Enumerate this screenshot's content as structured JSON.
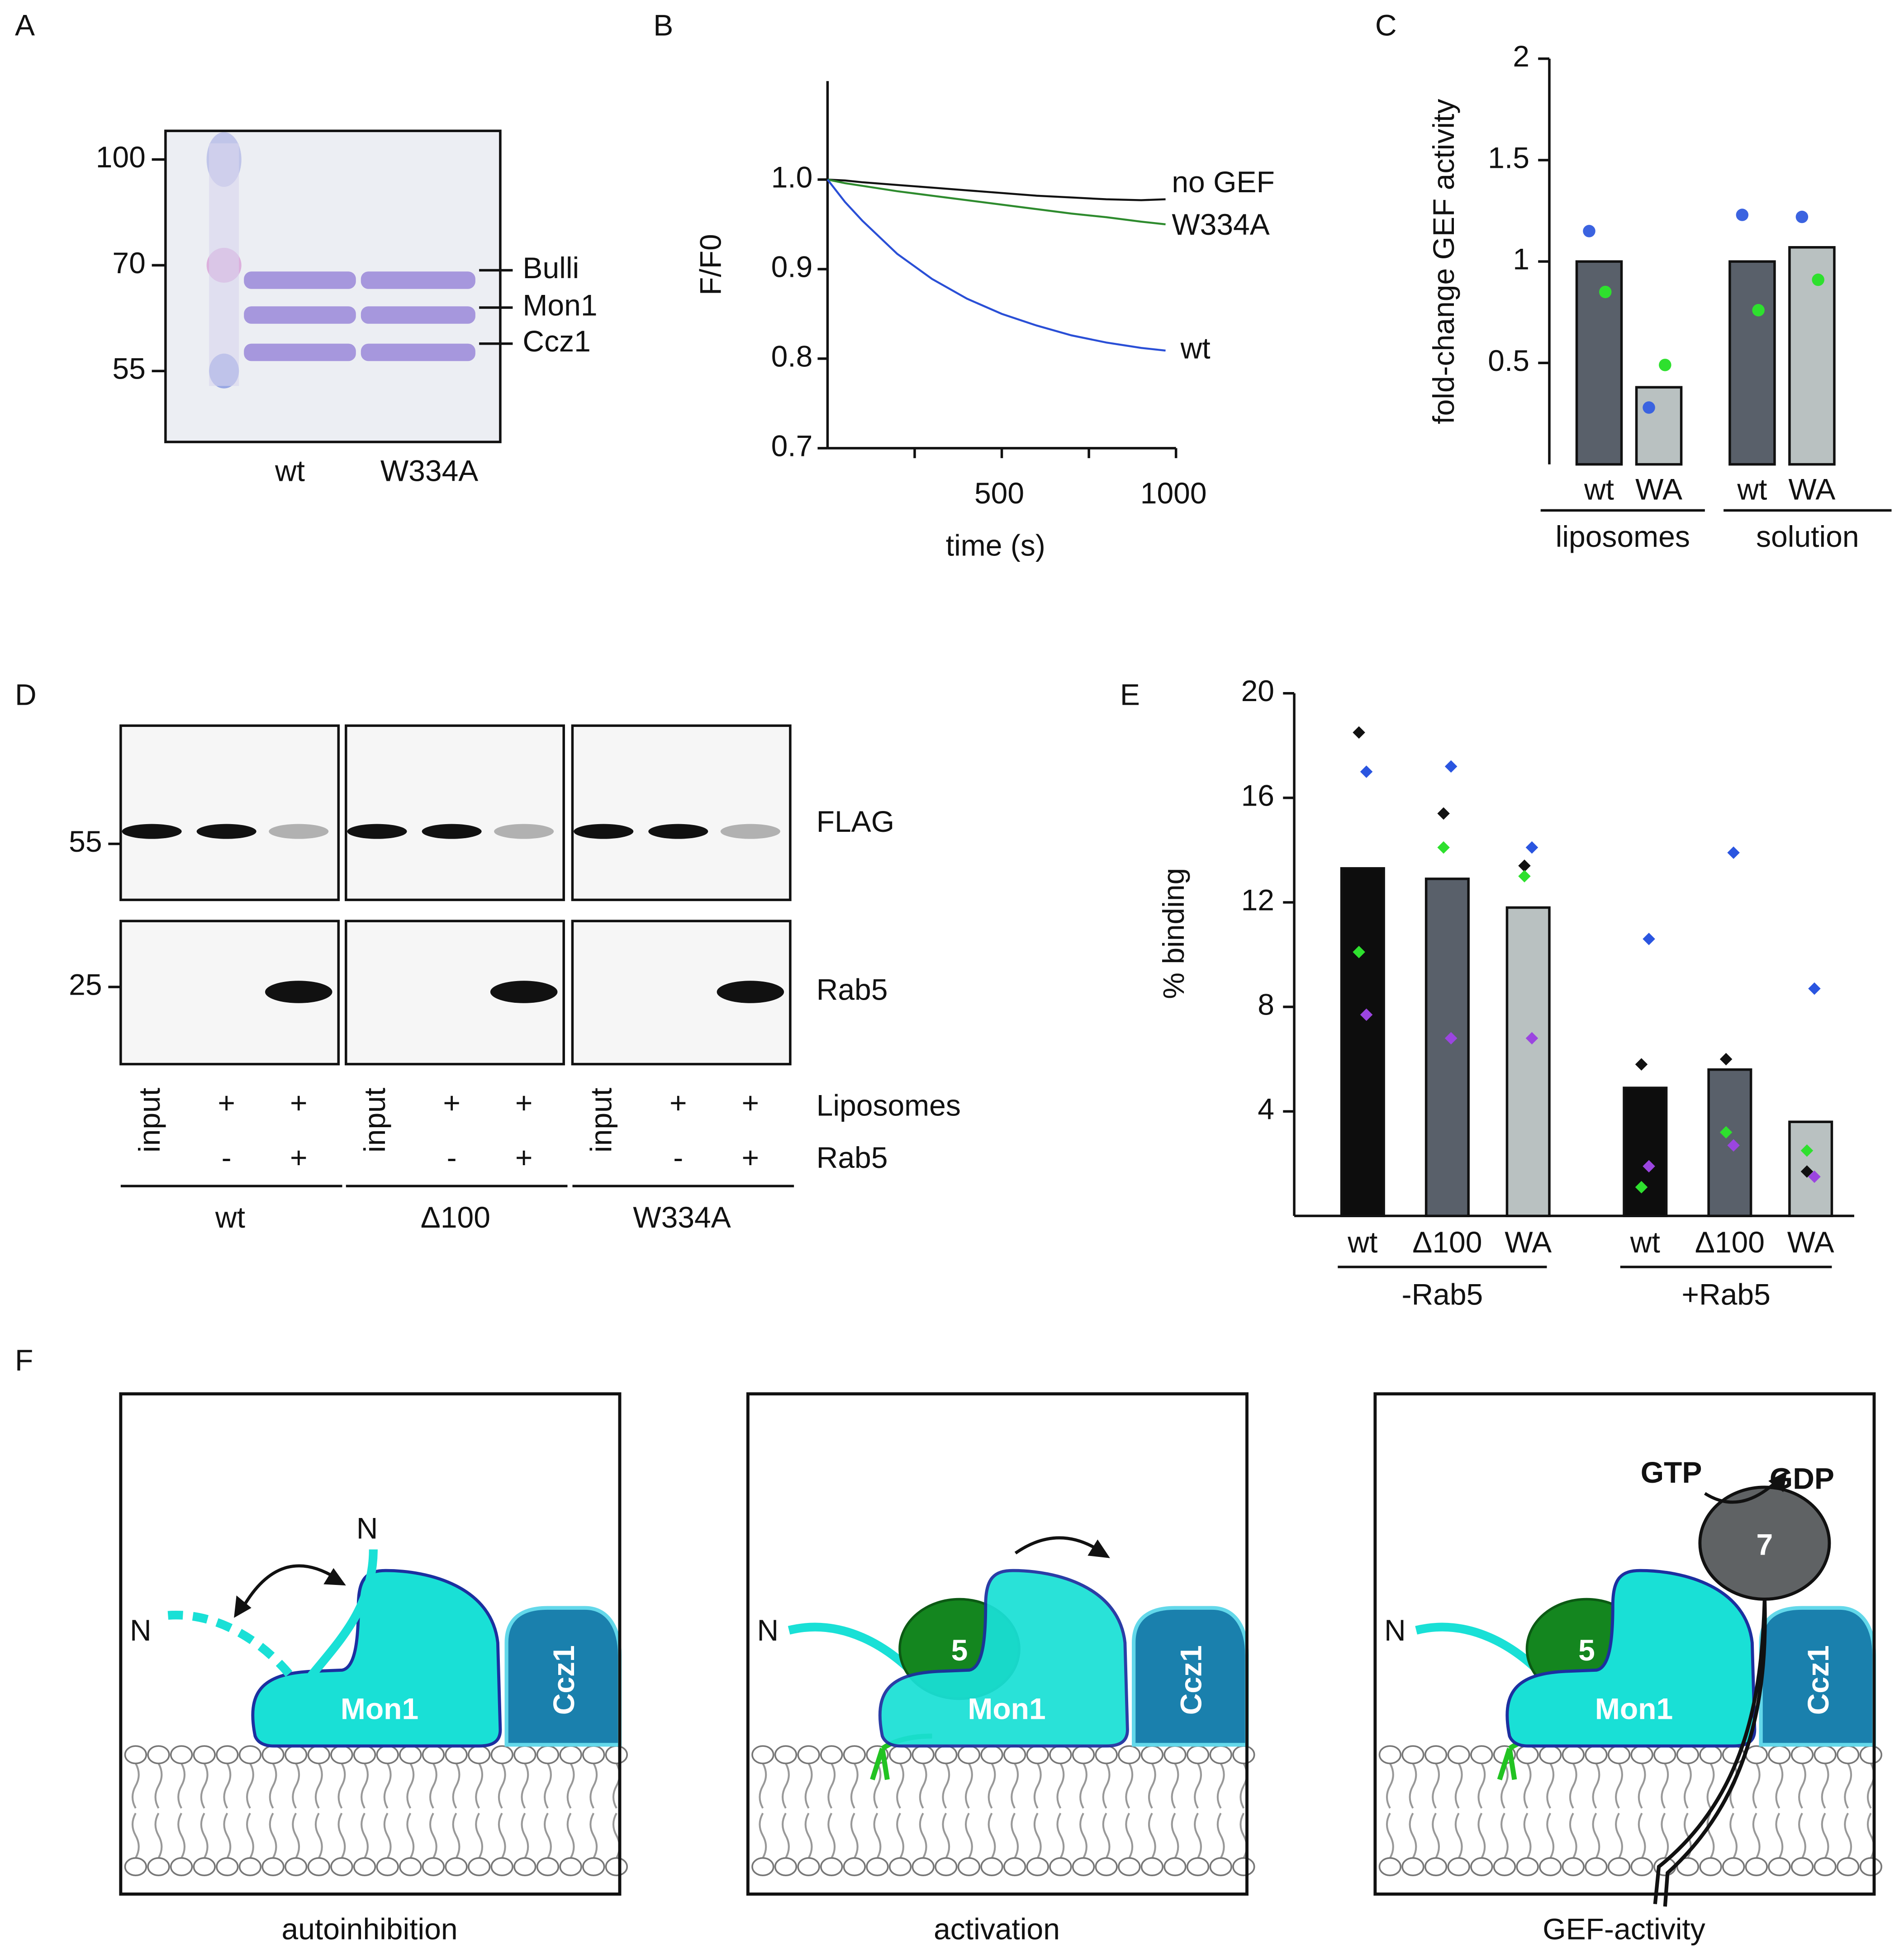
{
  "panel_labels": [
    "A",
    "B",
    "C",
    "D",
    "E",
    "F"
  ],
  "gel": {
    "mw_markers": [
      100,
      70,
      55
    ],
    "band_labels": [
      "Bulli",
      "Mon1",
      "Ccz1"
    ],
    "lane_labels": [
      "wt",
      "W334A"
    ]
  },
  "chart_data": [
    {
      "type": "line",
      "xlabel": "time (s)",
      "ylabel": "F/F0",
      "x": [
        0,
        50,
        100,
        200,
        300,
        400,
        500,
        600,
        700,
        800,
        900,
        970
      ],
      "xlim": [
        0,
        1000
      ],
      "xticks": [
        500,
        1000
      ],
      "x_minor_ticks": [
        250,
        750
      ],
      "ylim": [
        0.7,
        1.11
      ],
      "yticks": [
        0.7,
        0.8,
        0.9,
        {
          "value": 1,
          "label": "1.0"
        }
      ],
      "series": [
        {
          "name": "no GEF",
          "color": "#111111",
          "values": [
            1.0,
            0.999,
            0.997,
            0.994,
            0.991,
            0.988,
            0.985,
            0.982,
            0.98,
            0.978,
            0.977,
            0.978
          ]
        },
        {
          "name": "W334A",
          "color": "#2e8b2e",
          "values": [
            1.0,
            0.996,
            0.993,
            0.987,
            0.982,
            0.977,
            0.972,
            0.967,
            0.962,
            0.958,
            0.953,
            0.95
          ]
        },
        {
          "name": "wt",
          "color": "#2a4fd6",
          "values": [
            1.0,
            0.975,
            0.954,
            0.917,
            0.889,
            0.867,
            0.85,
            0.837,
            0.826,
            0.818,
            0.812,
            0.809
          ]
        }
      ]
    },
    {
      "type": "bar",
      "marker": "circle",
      "ylabel": "fold-change GEF activity",
      "categories": [
        "wt",
        "WA",
        "wt",
        "WA"
      ],
      "groups": [
        "liposomes",
        "solution"
      ],
      "values": [
        1,
        0.38,
        1,
        1.07
      ],
      "colors": [
        "#59606a",
        "#b9c1c1",
        "#59606a",
        "#b9c1c1"
      ],
      "replicates": [
        {
          "color": "#3b63e0",
          "values": [
            1.15,
            0.28,
            1.23,
            1.22
          ]
        },
        {
          "color": "#2ee02e",
          "values": [
            0.85,
            0.49,
            0.76,
            0.91
          ]
        }
      ],
      "ylim": [
        0,
        2
      ],
      "yticks": [
        0.5,
        1,
        1.5,
        2
      ]
    },
    {
      "type": "bar",
      "marker": "diamond",
      "ylabel": "% binding",
      "x_axis": true,
      "categories": [
        "wt",
        "Δ100",
        "WA",
        "wt",
        "Δ100",
        "WA"
      ],
      "groups": [
        "-Rab5",
        "+Rab5"
      ],
      "values": [
        13.3,
        12.9,
        11.8,
        4.9,
        5.6,
        3.6
      ],
      "colors": [
        "#0d0d0d",
        "#59606a",
        "#b9c1c1",
        "#0d0d0d",
        "#59606a",
        "#b9c1c1"
      ],
      "replicates": [
        {
          "color": "#111111",
          "values": [
            18.5,
            15.4,
            13.4,
            5.8,
            6.0,
            1.7
          ]
        },
        {
          "color": "#2a55e0",
          "values": [
            17.0,
            17.2,
            14.1,
            10.6,
            13.9,
            8.7
          ]
        },
        {
          "color": "#2ee02e",
          "values": [
            10.1,
            14.1,
            13.0,
            1.1,
            3.2,
            2.5
          ]
        },
        {
          "color": "#9b45e0",
          "values": [
            7.7,
            6.8,
            6.8,
            1.9,
            2.7,
            1.5
          ]
        }
      ],
      "ylim": [
        0,
        20
      ],
      "yticks": [
        4,
        8,
        12,
        16,
        20
      ]
    }
  ],
  "blot": {
    "mw_markers": [
      55,
      25
    ],
    "row_labels": [
      "FLAG",
      "Rab5"
    ],
    "condition_labels": [
      "Liposomes",
      "Rab5"
    ],
    "groups": [
      {
        "name": "wt",
        "liposomes": [
          "input",
          "+",
          "+"
        ],
        "rab5": [
          "-",
          "+"
        ]
      },
      {
        "name": "Δ100",
        "liposomes": [
          "input",
          "+",
          "+"
        ],
        "rab5": [
          "-",
          "+"
        ]
      },
      {
        "name": "W334A",
        "liposomes": [
          "input",
          "+",
          "+"
        ],
        "rab5": [
          "-",
          "+"
        ]
      }
    ]
  },
  "model": {
    "panels": [
      {
        "caption": "autoinhibition",
        "mon1": "Mon1",
        "ccz1": "Ccz1",
        "n_labels": [
          "N",
          "N"
        ]
      },
      {
        "caption": "activation",
        "mon1": "Mon1",
        "ccz1": "Ccz1",
        "n_labels": [
          "N"
        ],
        "rab5": "5"
      },
      {
        "caption": "GEF-activity",
        "mon1": "Mon1",
        "ccz1": "Ccz1",
        "n_labels": [
          "N"
        ],
        "rab5": "5",
        "rab7": "7",
        "gtp": "GTP",
        "gdp": "GDP"
      }
    ]
  }
}
